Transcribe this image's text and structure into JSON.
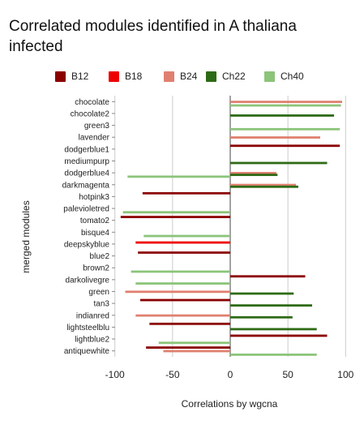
{
  "chart_data": {
    "type": "bar",
    "orientation": "horizontal",
    "title": "Correlated modules identified in A thaliana infected",
    "xlabel": "Correlations by wgcna",
    "ylabel": "merged modules",
    "xlim": [
      -110,
      100
    ],
    "xticks": [
      -100,
      -50,
      0,
      50,
      100
    ],
    "xtick_labels": [
      "-100",
      "-50",
      "0",
      "50",
      "100"
    ],
    "grid": "vertical",
    "legend_position": "top",
    "categories": [
      "chocolate",
      "chocolate2",
      "green3",
      "lavender",
      "dodgerblue1",
      "mediumpurp",
      "dodgerblue4",
      "darkmagenta",
      "hotpink3",
      "palevioletred",
      "tomato2",
      "bisque4",
      "deepskyblue",
      "blue2",
      "brown2",
      "darkolivegre",
      "green",
      "tan3",
      "indianred",
      "lightsteelblu",
      "lightblue2",
      "antiquewhite"
    ],
    "series": [
      {
        "name": "B12",
        "color": "#8b0000",
        "values": [
          0,
          0,
          0,
          0,
          95,
          0,
          0,
          0,
          -76,
          0,
          -95,
          0,
          0,
          -80,
          0,
          65,
          0,
          -78,
          0,
          -70,
          84,
          -73
        ]
      },
      {
        "name": "B18",
        "color": "#ee0000",
        "values": [
          0,
          0,
          0,
          0,
          0,
          0,
          0,
          0,
          0,
          0,
          0,
          0,
          -82,
          0,
          0,
          0,
          0,
          0,
          0,
          0,
          0,
          0
        ]
      },
      {
        "name": "B24",
        "color": "#e08070",
        "values": [
          97,
          0,
          0,
          78,
          0,
          0,
          40,
          57,
          0,
          0,
          0,
          0,
          0,
          0,
          0,
          0,
          -91,
          0,
          -82,
          0,
          0,
          -58
        ]
      },
      {
        "name": "Ch22",
        "color": "#2e6b16",
        "values": [
          0,
          90,
          0,
          0,
          0,
          84,
          41,
          59,
          0,
          0,
          0,
          0,
          0,
          0,
          0,
          0,
          55,
          71,
          54,
          75,
          0,
          0
        ]
      },
      {
        "name": "Ch40",
        "color": "#8cc47a",
        "values": [
          96,
          0,
          95,
          0,
          0,
          0,
          -89,
          0,
          0,
          -93,
          0,
          -75,
          0,
          0,
          -86,
          -82,
          0,
          0,
          0,
          0,
          -62,
          75
        ]
      }
    ]
  }
}
